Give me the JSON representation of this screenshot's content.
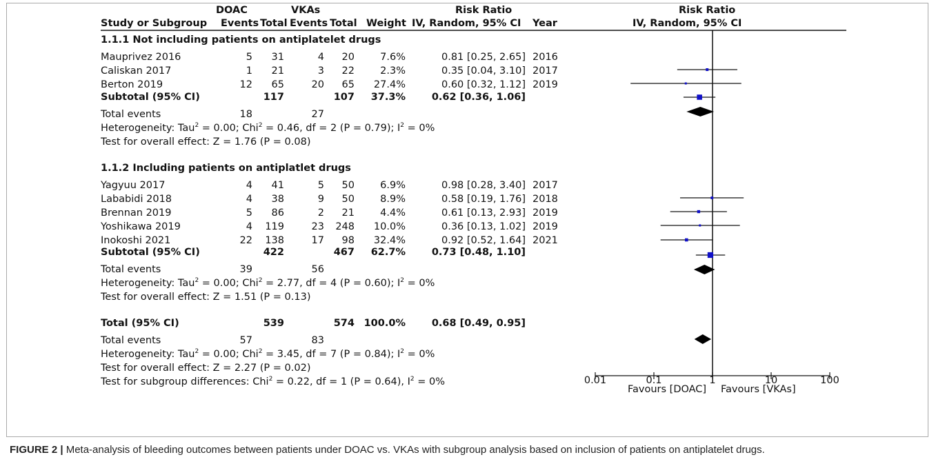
{
  "header": {
    "doac": "DOAC",
    "vkas": "VKAs",
    "risk_ratio_table": "Risk Ratio",
    "risk_ratio_plot": "Risk Ratio",
    "study_or_subgroup": "Study or Subgroup",
    "events1": "Events",
    "total1": "Total",
    "events2": "Events",
    "total2": "Total",
    "weight": "Weight",
    "method": "IV, Random, 95% CI",
    "year": "Year",
    "method_plot": "IV, Random, 95% CI"
  },
  "subgroups": [
    {
      "title": "1.1.1 Not including patients on antiplatelet drugs",
      "studies": [
        {
          "name": "Mauprivez 2016",
          "e1": "5",
          "t1": "31",
          "e2": "4",
          "t2": "20",
          "weight": "7.6%",
          "ci": "0.81 [0.25, 2.65]",
          "year": "2016"
        },
        {
          "name": "Caliskan 2017",
          "e1": "1",
          "t1": "21",
          "e2": "3",
          "t2": "22",
          "weight": "2.3%",
          "ci": "0.35 [0.04, 3.10]",
          "year": "2017"
        },
        {
          "name": "Berton 2019",
          "e1": "12",
          "t1": "65",
          "e2": "20",
          "t2": "65",
          "weight": "27.4%",
          "ci": "0.60 [0.32, 1.12]",
          "year": "2019"
        }
      ],
      "subtotal": {
        "label": "Subtotal (95% CI)",
        "t1": "117",
        "t2": "107",
        "weight": "37.3%",
        "ci": "0.62 [0.36, 1.06]"
      },
      "total_events": {
        "label": "Total events",
        "e1": "18",
        "e2": "27"
      },
      "heterogeneity": {
        "pre": "Heterogeneity: Tau",
        "tau": " = 0.00; Chi",
        "chi": " = 0.46, df = 2 (P = 0.79); I",
        "i2": " = 0%"
      },
      "overall": "Test for overall effect: Z = 1.76 (P = 0.08)"
    },
    {
      "title": "1.1.2 Including patients on antiplatlet drugs",
      "studies": [
        {
          "name": "Yagyuu 2017",
          "e1": "4",
          "t1": "41",
          "e2": "5",
          "t2": "50",
          "weight": "6.9%",
          "ci": "0.98 [0.28, 3.40]",
          "year": "2017"
        },
        {
          "name": "Lababidi 2018",
          "e1": "4",
          "t1": "38",
          "e2": "9",
          "t2": "50",
          "weight": "8.9%",
          "ci": "0.58 [0.19, 1.76]",
          "year": "2018"
        },
        {
          "name": "Brennan 2019",
          "e1": "5",
          "t1": "86",
          "e2": "2",
          "t2": "21",
          "weight": "4.4%",
          "ci": "0.61 [0.13, 2.93]",
          "year": "2019"
        },
        {
          "name": "Yoshikawa 2019",
          "e1": "4",
          "t1": "119",
          "e2": "23",
          "t2": "248",
          "weight": "10.0%",
          "ci": "0.36 [0.13, 1.02]",
          "year": "2019"
        },
        {
          "name": "Inokoshi 2021",
          "e1": "22",
          "t1": "138",
          "e2": "17",
          "t2": "98",
          "weight": "32.4%",
          "ci": "0.92 [0.52, 1.64]",
          "year": "2021"
        }
      ],
      "subtotal": {
        "label": "Subtotal (95% CI)",
        "t1": "422",
        "t2": "467",
        "weight": "62.7%",
        "ci": "0.73 [0.48, 1.10]"
      },
      "total_events": {
        "label": "Total events",
        "e1": "39",
        "e2": "56"
      },
      "heterogeneity": {
        "pre": "Heterogeneity: Tau",
        "tau": " = 0.00; Chi",
        "chi": " = 2.77, df = 4 (P = 0.60); I",
        "i2": " = 0%"
      },
      "overall": "Test for overall effect: Z = 1.51 (P = 0.13)"
    }
  ],
  "total": {
    "label": "Total (95% CI)",
    "t1": "539",
    "t2": "574",
    "weight": "100.0%",
    "ci": "0.68 [0.49, 0.95]",
    "events_label": "Total events",
    "e1": "57",
    "e2": "83",
    "heterogeneity": {
      "pre": "Heterogeneity: Tau",
      "tau": " = 0.00; Chi",
      "chi": " = 3.45, df = 7 (P = 0.84); I",
      "i2": " = 0%"
    },
    "overall": "Test for overall effect: Z = 2.27 (P = 0.02)",
    "subgroup_diff": {
      "pre": "Test for subgroup differences: Chi",
      "chi": " = 0.22, df = 1 (P = 0.64), I",
      "i2": " = 0%"
    }
  },
  "superscript": "2",
  "axis": {
    "ticks": [
      "0.01",
      "0.1",
      "1",
      "10",
      "100"
    ],
    "favours_left": "Favours [DOAC]",
    "favours_right": "Favours [VKAs]"
  },
  "colors": {
    "study_marker": "#1010c8",
    "diamond": "#000000",
    "ink": "#111111"
  },
  "chart_data": {
    "type": "forest",
    "scale": "log",
    "xlim": [
      0.01,
      100
    ],
    "null_line": 1,
    "studies": [
      {
        "name": "Mauprivez 2016",
        "rr": 0.81,
        "lo": 0.25,
        "hi": 2.65,
        "weight": 7.6
      },
      {
        "name": "Caliskan 2017",
        "rr": 0.35,
        "lo": 0.04,
        "hi": 3.1,
        "weight": 2.3
      },
      {
        "name": "Berton 2019",
        "rr": 0.6,
        "lo": 0.32,
        "hi": 1.12,
        "weight": 27.4
      },
      {
        "name": "Yagyuu 2017",
        "rr": 0.98,
        "lo": 0.28,
        "hi": 3.4,
        "weight": 6.9
      },
      {
        "name": "Lababidi 2018",
        "rr": 0.58,
        "lo": 0.19,
        "hi": 1.76,
        "weight": 8.9
      },
      {
        "name": "Brennan 2019",
        "rr": 0.61,
        "lo": 0.13,
        "hi": 2.93,
        "weight": 4.4
      },
      {
        "name": "Yoshikawa 2019",
        "rr": 0.36,
        "lo": 0.13,
        "hi": 1.02,
        "weight": 10.0
      },
      {
        "name": "Inokoshi 2021",
        "rr": 0.92,
        "lo": 0.52,
        "hi": 1.64,
        "weight": 32.4
      }
    ],
    "pooled": [
      {
        "name": "Subtotal 1.1.1",
        "rr": 0.62,
        "lo": 0.36,
        "hi": 1.06
      },
      {
        "name": "Subtotal 1.1.2",
        "rr": 0.73,
        "lo": 0.48,
        "hi": 1.1
      },
      {
        "name": "Total",
        "rr": 0.68,
        "lo": 0.49,
        "hi": 0.95
      }
    ]
  },
  "caption": {
    "label": "FIGURE 2 |",
    "text": " Meta-analysis of bleeding outcomes between patients under DOAC vs. VKAs with subgroup analysis based on inclusion of patients on antiplatelet drugs."
  }
}
